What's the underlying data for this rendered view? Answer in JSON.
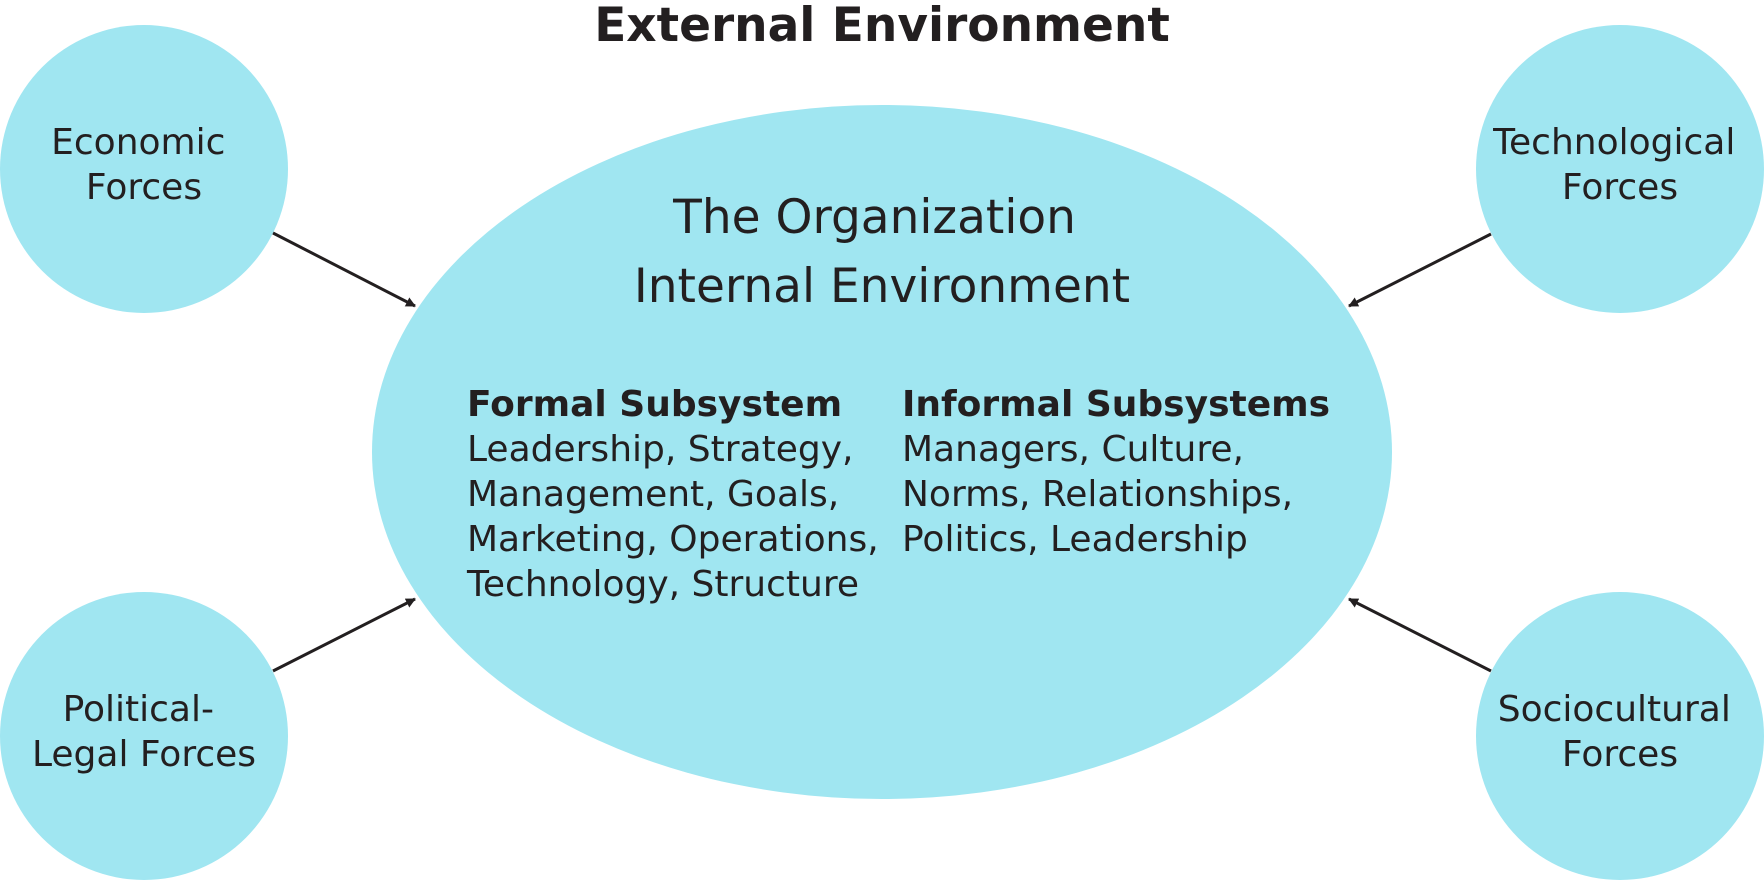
{
  "title": "External Environment",
  "colors": {
    "fill": "#a0e6f1",
    "text": "#231f20",
    "arrow": "#231f20"
  },
  "forces": {
    "economic": [
      "Economic",
      "Forces"
    ],
    "technological": [
      "Technological",
      "Forces"
    ],
    "political_legal": [
      "Political-",
      "Legal Forces"
    ],
    "sociocultural": [
      "Sociocultural",
      "Forces"
    ]
  },
  "organization": {
    "lines": [
      "The Organization",
      "Internal Environment"
    ],
    "formal": {
      "heading": "Formal Subsystem",
      "lines": [
        "Leadership, Strategy,",
        "Management, Goals,",
        "Marketing, Operations,",
        "Technology, Structure"
      ]
    },
    "informal": {
      "heading": "Informal Subsystems",
      "lines": [
        "Managers, Culture,",
        "Norms, Relationships,",
        "Politics, Leadership"
      ]
    }
  }
}
